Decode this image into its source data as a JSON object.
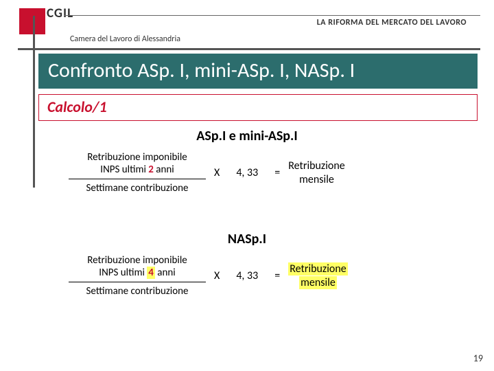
{
  "header": {
    "logo_text": "CGIL",
    "title": "LA RIFORMA DEL MERCATO DEL LAVORO",
    "subtitle": "Camera del Lavoro di Alessandria"
  },
  "main_title": "Confronto ASp. I, mini-ASp. I, NASp. I",
  "section": "Calcolo/1",
  "formula1": {
    "title": "ASp.I e mini-ASp.I",
    "num_line1": "Retribuzione imponibile",
    "num_line2_a": "INPS ultimi ",
    "num_line2_b": "2",
    "num_line2_c": " anni",
    "denom": "Settimane contribuzione",
    "mult": "X",
    "factor": "4, 33",
    "eq": "=",
    "result_l1": "Retribuzione",
    "result_l2": "mensile"
  },
  "formula2": {
    "title": "NASp.I",
    "num_line1": "Retribuzione imponibile",
    "num_line2_a": "INPS ultimi ",
    "num_line2_b": "4",
    "num_line2_c": " anni",
    "denom": "Settimane contribuzione",
    "mult": "X",
    "factor": "4, 33",
    "eq": "=",
    "result_l1": "Retribuzione",
    "result_l2": "mensile"
  },
  "page_number": "19",
  "colors": {
    "brand_red": "#c8102e",
    "teal": "#2c6d6d",
    "highlight": "#ffff66"
  }
}
